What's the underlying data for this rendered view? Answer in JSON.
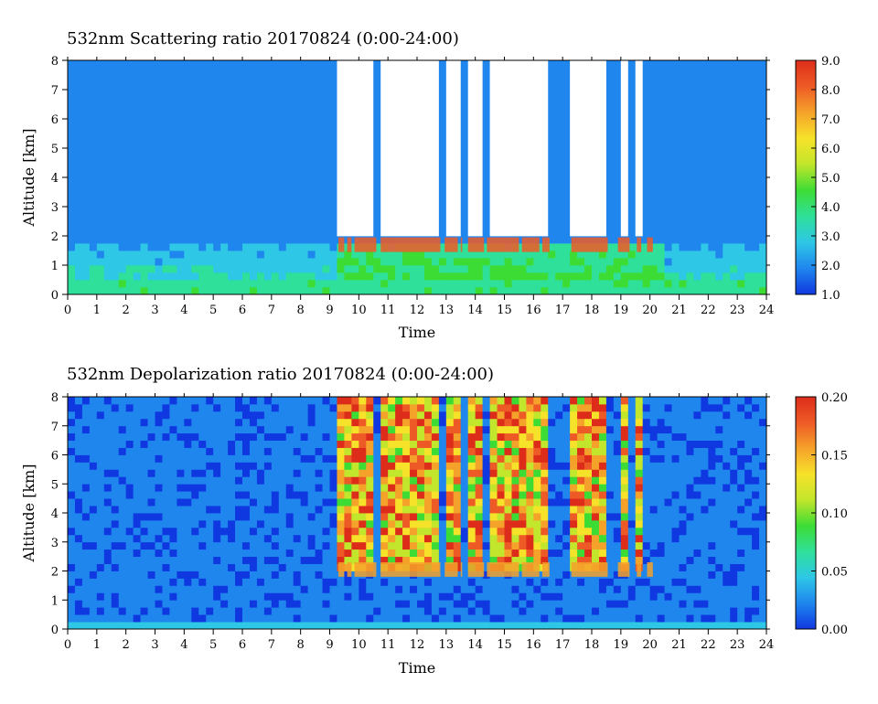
{
  "chart_data": [
    {
      "type": "heatmap",
      "title": "532nm Scattering ratio  20170824 (0:00-24:00)",
      "xlabel": "Time",
      "ylabel": "Altitude [km]",
      "xlim": [
        0,
        24
      ],
      "ylim": [
        0,
        8
      ],
      "x_ticks": [
        "0",
        "1",
        "2",
        "3",
        "4",
        "5",
        "6",
        "7",
        "8",
        "9",
        "10",
        "11",
        "12",
        "13",
        "14",
        "15",
        "16",
        "17",
        "18",
        "19",
        "20",
        "21",
        "22",
        "23",
        "24"
      ],
      "y_ticks": [
        "0",
        "1",
        "2",
        "3",
        "4",
        "5",
        "6",
        "7",
        "8"
      ],
      "colorbar": {
        "range": [
          1.0,
          9.0
        ],
        "ticks": [
          "1.0",
          "2.0",
          "3.0",
          "4.0",
          "5.0",
          "6.0",
          "7.0",
          "8.0",
          "9.0"
        ],
        "colors": [
          "#1038e0",
          "#1f86ee",
          "#2ec7e6",
          "#2fe09a",
          "#3ddc35",
          "#c2e62b",
          "#f7e22a",
          "#f5a22a",
          "#ee5a26",
          "#dd2d1a"
        ]
      },
      "features": {
        "boundary_layer_top_km": 0.6,
        "aerosol_layer_km": [
          0.6,
          1.7
        ],
        "cloud_base_km": 2.0,
        "cloud_top_km": 8.0,
        "cloud_period_hours": [
          9.3,
          20.5
        ],
        "no_data_fill": "#ffffff"
      }
    },
    {
      "type": "heatmap",
      "title": "532nm Depolarization ratio  20170824 (0:00-24:00)",
      "xlabel": "Time",
      "ylabel": "Altitude [km]",
      "xlim": [
        0,
        24
      ],
      "ylim": [
        0,
        8
      ],
      "x_ticks": [
        "0",
        "1",
        "2",
        "3",
        "4",
        "5",
        "6",
        "7",
        "8",
        "9",
        "10",
        "11",
        "12",
        "13",
        "14",
        "15",
        "16",
        "17",
        "18",
        "19",
        "20",
        "21",
        "22",
        "23",
        "24"
      ],
      "y_ticks": [
        "0",
        "1",
        "2",
        "3",
        "4",
        "5",
        "6",
        "7",
        "8"
      ],
      "colorbar": {
        "range": [
          0.0,
          0.2
        ],
        "ticks": [
          "0.00",
          "0.05",
          "0.10",
          "0.15",
          "0.20"
        ],
        "colors": [
          "#1038e0",
          "#1f86ee",
          "#2ec7e6",
          "#2fe09a",
          "#3ddc35",
          "#c2e62b",
          "#f7e22a",
          "#f5a22a",
          "#ee5a26",
          "#dd2d1a"
        ]
      },
      "features": {
        "ice_cloud_base_km": 2.0,
        "ice_cloud_top_km": 8.0,
        "cloud_period_hours": [
          9.3,
          20.5
        ]
      }
    }
  ]
}
